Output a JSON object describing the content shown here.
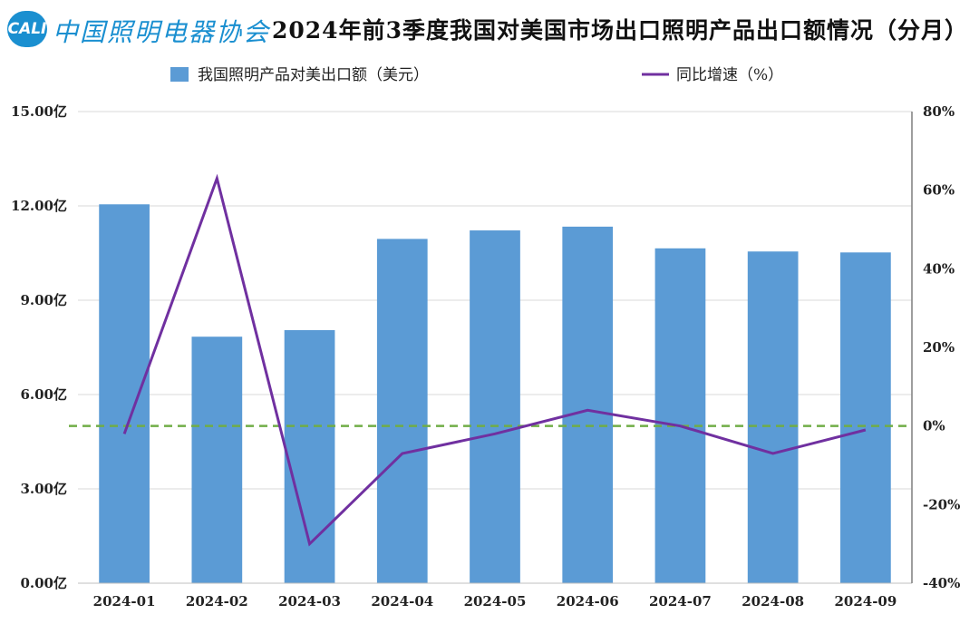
{
  "header": {
    "logo_badge": "CALI",
    "logo_text": "中国照明电器协会"
  },
  "chart_data": {
    "type": "bar",
    "title": "2024年前3季度我国对美国市场出口照明产品出口额情况（分月）",
    "categories": [
      "2024-01",
      "2024-02",
      "2024-03",
      "2024-04",
      "2024-05",
      "2024-06",
      "2024-07",
      "2024-08",
      "2024-09"
    ],
    "series": [
      {
        "name": "我国照明产品对美出口额（美元）",
        "type": "bar",
        "axis": "left",
        "color": "#5b9bd5",
        "values": [
          12.05,
          7.84,
          8.05,
          10.95,
          11.22,
          11.34,
          10.65,
          10.55,
          10.52
        ]
      },
      {
        "name": "同比增速（%）",
        "type": "line",
        "axis": "right",
        "color": "#7030a0",
        "values": [
          -2,
          63,
          -30,
          -7,
          -2,
          4,
          0,
          -7,
          -1
        ]
      }
    ],
    "left_axis": {
      "min": 0,
      "max": 15,
      "step": 3,
      "tick_labels": [
        "0.00亿",
        "3.00亿",
        "6.00亿",
        "9.00亿",
        "12.00亿",
        "15.00亿"
      ]
    },
    "right_axis": {
      "min": -40,
      "max": 80,
      "step": 20,
      "tick_labels": [
        "-40%",
        "-20%",
        "0%",
        "20%",
        "40%",
        "60%",
        "80%"
      ]
    },
    "reference_line": {
      "value": 0,
      "axis": "right",
      "color": "#70ad47",
      "style": "dashed"
    },
    "legend_position": "top-center",
    "grid": true
  }
}
